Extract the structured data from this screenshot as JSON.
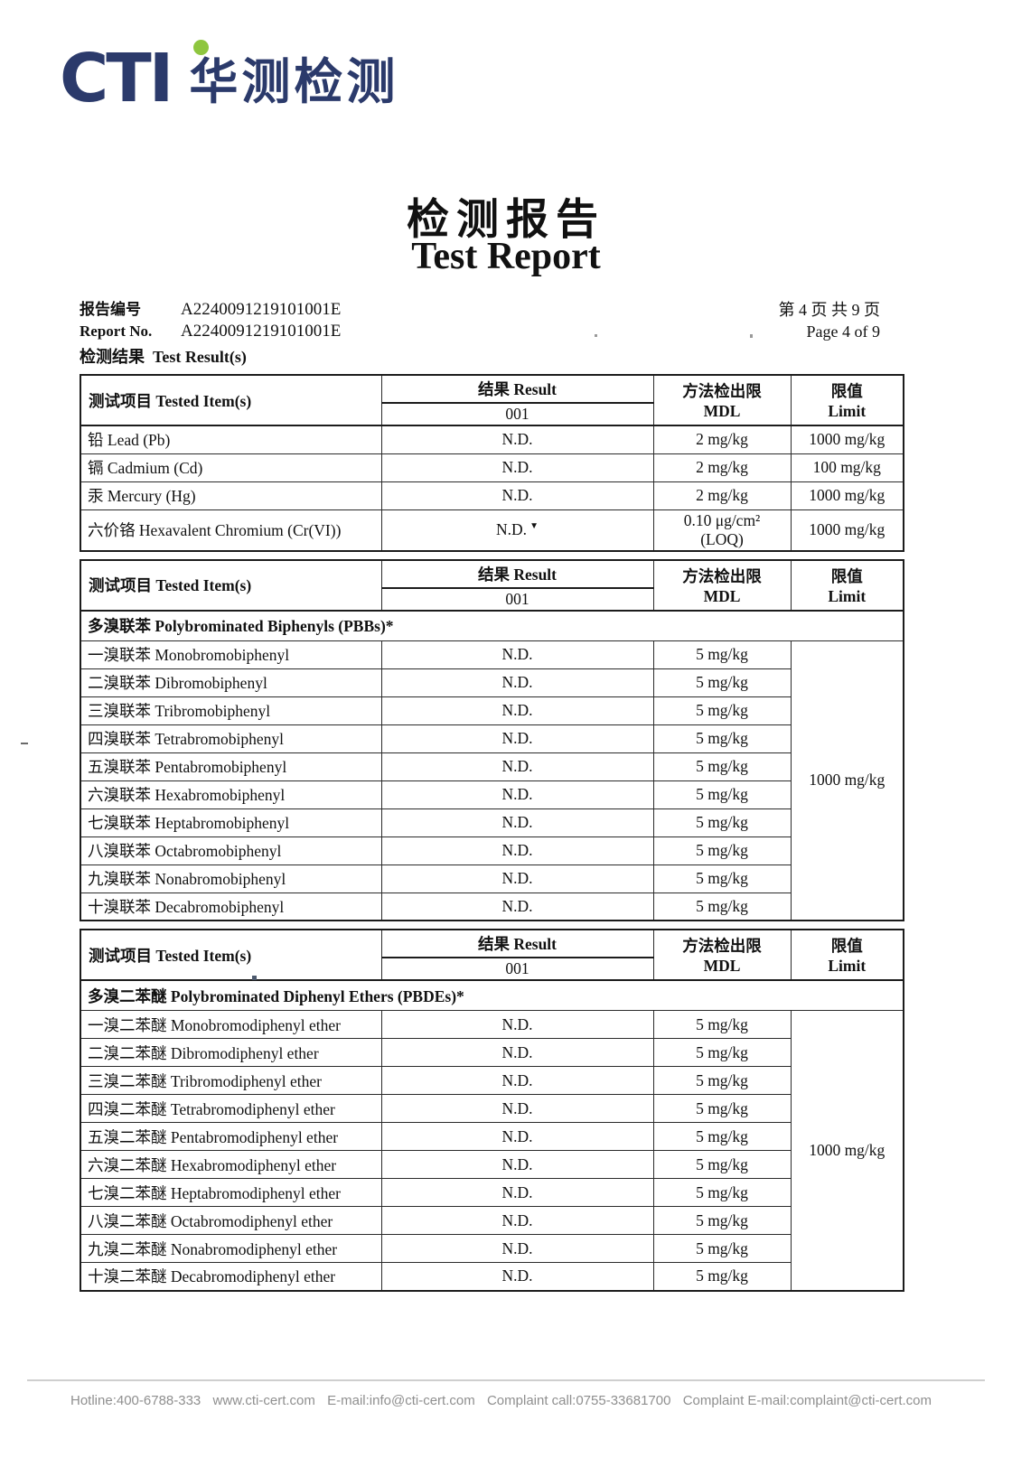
{
  "logo": {
    "brand": "CTI",
    "brand_cn": "华测检测",
    "navy": "#2b3a6b",
    "green": "#8ec63f"
  },
  "title": {
    "cn": "检测报告",
    "en": "Test Report"
  },
  "report_no": {
    "label_cn": "报告编号",
    "label_en": "Report No.",
    "value": "A2240091219101001E"
  },
  "page_info": {
    "cn": "第 4 页  共 9 页",
    "en": "Page 4 of 9"
  },
  "result_heading": {
    "cn": "检测结果",
    "en": "Test Result(s)"
  },
  "table_header": {
    "item": "测试项目  Tested Item(s)",
    "result": "结果  Result",
    "sample": "001",
    "mdl": "方法检出限\nMDL",
    "limit": "限值\nLimit"
  },
  "tables": [
    {
      "section": null,
      "merged_limit": null,
      "rows": [
        {
          "item": "铅  Lead (Pb)",
          "result": "N.D.",
          "mdl": "2 mg/kg",
          "limit": "1000 mg/kg"
        },
        {
          "item": "镉  Cadmium (Cd)",
          "result": "N.D.",
          "mdl": "2 mg/kg",
          "limit": "100 mg/kg"
        },
        {
          "item": "汞  Mercury (Hg)",
          "result": "N.D.",
          "mdl": "2 mg/kg",
          "limit": "1000 mg/kg"
        },
        {
          "item": "六价铬  Hexavalent Chromium (Cr(VI))",
          "result": "N.D.",
          "marker": "▼",
          "mdl": "0.10 μg/cm²\n(LOQ)",
          "limit": "1000 mg/kg"
        }
      ]
    },
    {
      "section": "多溴联苯  Polybrominated Biphenyls (PBBs)*",
      "merged_limit": "1000 mg/kg",
      "rows": [
        {
          "item": "一溴联苯  Monobromobiphenyl",
          "result": "N.D.",
          "mdl": "5 mg/kg"
        },
        {
          "item": "二溴联苯  Dibromobiphenyl",
          "result": "N.D.",
          "mdl": "5 mg/kg"
        },
        {
          "item": "三溴联苯  Tribromobiphenyl",
          "result": "N.D.",
          "mdl": "5 mg/kg"
        },
        {
          "item": "四溴联苯  Tetrabromobiphenyl",
          "result": "N.D.",
          "mdl": "5 mg/kg"
        },
        {
          "item": "五溴联苯  Pentabromobiphenyl",
          "result": "N.D.",
          "mdl": "5 mg/kg"
        },
        {
          "item": "六溴联苯  Hexabromobiphenyl",
          "result": "N.D.",
          "mdl": "5 mg/kg"
        },
        {
          "item": "七溴联苯  Heptabromobiphenyl",
          "result": "N.D.",
          "mdl": "5 mg/kg"
        },
        {
          "item": "八溴联苯  Octabromobiphenyl",
          "result": "N.D.",
          "mdl": "5 mg/kg"
        },
        {
          "item": "九溴联苯  Nonabromobiphenyl",
          "result": "N.D.",
          "mdl": "5 mg/kg"
        },
        {
          "item": "十溴联苯  Decabromobiphenyl",
          "result": "N.D.",
          "mdl": "5 mg/kg"
        }
      ]
    },
    {
      "section": "多溴二苯醚  Polybrominated Diphenyl Ethers (PBDEs)*",
      "merged_limit": "1000 mg/kg",
      "rows": [
        {
          "item": "一溴二苯醚  Monobromodiphenyl ether",
          "result": "N.D.",
          "mdl": "5 mg/kg"
        },
        {
          "item": "二溴二苯醚  Dibromodiphenyl ether",
          "result": "N.D.",
          "mdl": "5 mg/kg"
        },
        {
          "item": "三溴二苯醚  Tribromodiphenyl ether",
          "result": "N.D.",
          "mdl": "5 mg/kg"
        },
        {
          "item": "四溴二苯醚  Tetrabromodiphenyl ether",
          "result": "N.D.",
          "mdl": "5 mg/kg"
        },
        {
          "item": "五溴二苯醚  Pentabromodiphenyl ether",
          "result": "N.D.",
          "mdl": "5 mg/kg"
        },
        {
          "item": "六溴二苯醚  Hexabromodiphenyl ether",
          "result": "N.D.",
          "mdl": "5 mg/kg"
        },
        {
          "item": "七溴二苯醚  Heptabromodiphenyl ether",
          "result": "N.D.",
          "mdl": "5 mg/kg"
        },
        {
          "item": "八溴二苯醚  Octabromodiphenyl ether",
          "result": "N.D.",
          "mdl": "5 mg/kg"
        },
        {
          "item": "九溴二苯醚  Nonabromodiphenyl ether",
          "result": "N.D.",
          "mdl": "5 mg/kg"
        },
        {
          "item": "十溴二苯醚  Decabromodiphenyl ether",
          "result": "N.D.",
          "mdl": "5 mg/kg"
        }
      ]
    }
  ],
  "footer": {
    "items": [
      "Hotline:400-6788-333",
      "www.cti-cert.com",
      "E-mail:info@cti-cert.com",
      "Complaint call:0755-33681700",
      "Complaint E-mail:complaint@cti-cert.com"
    ]
  }
}
